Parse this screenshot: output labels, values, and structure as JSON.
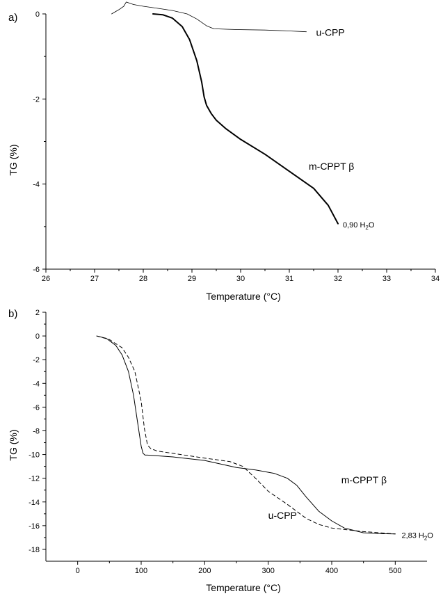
{
  "chart_data": [
    {
      "type": "line",
      "panel_label": "a)",
      "xlabel": "Temperature (°C)",
      "ylabel": "TG (%)",
      "xlim": [
        26,
        34
      ],
      "ylim": [
        -6,
        0
      ],
      "xticks": [
        26,
        27,
        28,
        29,
        30,
        31,
        32,
        33,
        34
      ],
      "yticks": [
        0,
        -2,
        -4,
        -6
      ],
      "grid": false,
      "legend": "none",
      "series": [
        {
          "name": "u-CPP",
          "style": "thin-solid",
          "x": [
            27.35,
            27.5,
            27.6,
            27.65,
            27.8,
            28.0,
            28.3,
            28.6,
            28.9,
            29.1,
            29.3,
            29.45,
            29.7,
            30.0,
            30.5,
            31.0,
            31.35
          ],
          "y": [
            0.0,
            0.1,
            0.18,
            0.28,
            0.22,
            0.18,
            0.13,
            0.08,
            0.0,
            -0.12,
            -0.28,
            -0.35,
            -0.36,
            -0.37,
            -0.38,
            -0.4,
            -0.42
          ]
        },
        {
          "name": "m-CPPT β",
          "style": "thick-solid",
          "x": [
            28.2,
            28.4,
            28.6,
            28.8,
            28.95,
            29.1,
            29.2,
            29.25,
            29.3,
            29.4,
            29.5,
            29.7,
            30.0,
            30.5,
            31.0,
            31.5,
            31.8,
            32.0
          ],
          "y": [
            0.0,
            -0.02,
            -0.1,
            -0.3,
            -0.6,
            -1.1,
            -1.6,
            -1.95,
            -2.15,
            -2.35,
            -2.5,
            -2.7,
            -2.95,
            -3.3,
            -3.7,
            -4.1,
            -4.5,
            -4.93
          ]
        }
      ],
      "annotations": [
        {
          "text": "u-CPP",
          "x": 31.55,
          "y": -0.45
        },
        {
          "text": "m-CPPT β",
          "x": 31.4,
          "y": -3.6
        },
        {
          "text": "0,90 H",
          "sub": "2",
          "suffix": "O",
          "x": 32.1,
          "y": -4.95
        }
      ]
    },
    {
      "type": "line",
      "panel_label": "b)",
      "xlabel": "Temperature (°C)",
      "ylabel": "TG (%)",
      "xlim": [
        -50,
        550
      ],
      "ylim": [
        -19,
        2
      ],
      "xticks": [
        0,
        100,
        200,
        300,
        400,
        500
      ],
      "yticks": [
        2,
        0,
        -2,
        -4,
        -6,
        -8,
        -10,
        -12,
        -14,
        -16,
        -18
      ],
      "grid": false,
      "legend": "none",
      "series": [
        {
          "name": "m-CPPT β",
          "style": "solid",
          "x": [
            30,
            45,
            60,
            70,
            80,
            88,
            95,
            100,
            103,
            106,
            110,
            150,
            200,
            250,
            280,
            310,
            330,
            345,
            360,
            380,
            400,
            420,
            450,
            480,
            500
          ],
          "y": [
            0.0,
            -0.2,
            -0.8,
            -1.6,
            -3.0,
            -5.0,
            -7.5,
            -9.3,
            -9.9,
            -10.05,
            -10.05,
            -10.2,
            -10.5,
            -11.1,
            -11.3,
            -11.6,
            -12.0,
            -12.6,
            -13.6,
            -14.8,
            -15.6,
            -16.2,
            -16.6,
            -16.68,
            -16.7
          ]
        },
        {
          "name": "u-CPP",
          "style": "dashed",
          "x": [
            30,
            50,
            70,
            80,
            90,
            100,
            105,
            110,
            115,
            125,
            150,
            200,
            240,
            260,
            280,
            300,
            330,
            360,
            380,
            400,
            450,
            500
          ],
          "y": [
            0.0,
            -0.3,
            -1.0,
            -1.8,
            -3.0,
            -5.5,
            -7.8,
            -9.2,
            -9.5,
            -9.7,
            -9.9,
            -10.3,
            -10.6,
            -11.0,
            -12.0,
            -13.1,
            -14.2,
            -15.4,
            -15.9,
            -16.2,
            -16.5,
            -16.7
          ]
        }
      ],
      "annotations": [
        {
          "text": "m-CPPT β",
          "x": 415,
          "y": -12.2
        },
        {
          "text": "u-CPP",
          "x": 300,
          "y": -15.2
        },
        {
          "text": "2,83 H",
          "sub": "2",
          "suffix": "O",
          "x": 510,
          "y": -16.8
        }
      ]
    }
  ]
}
